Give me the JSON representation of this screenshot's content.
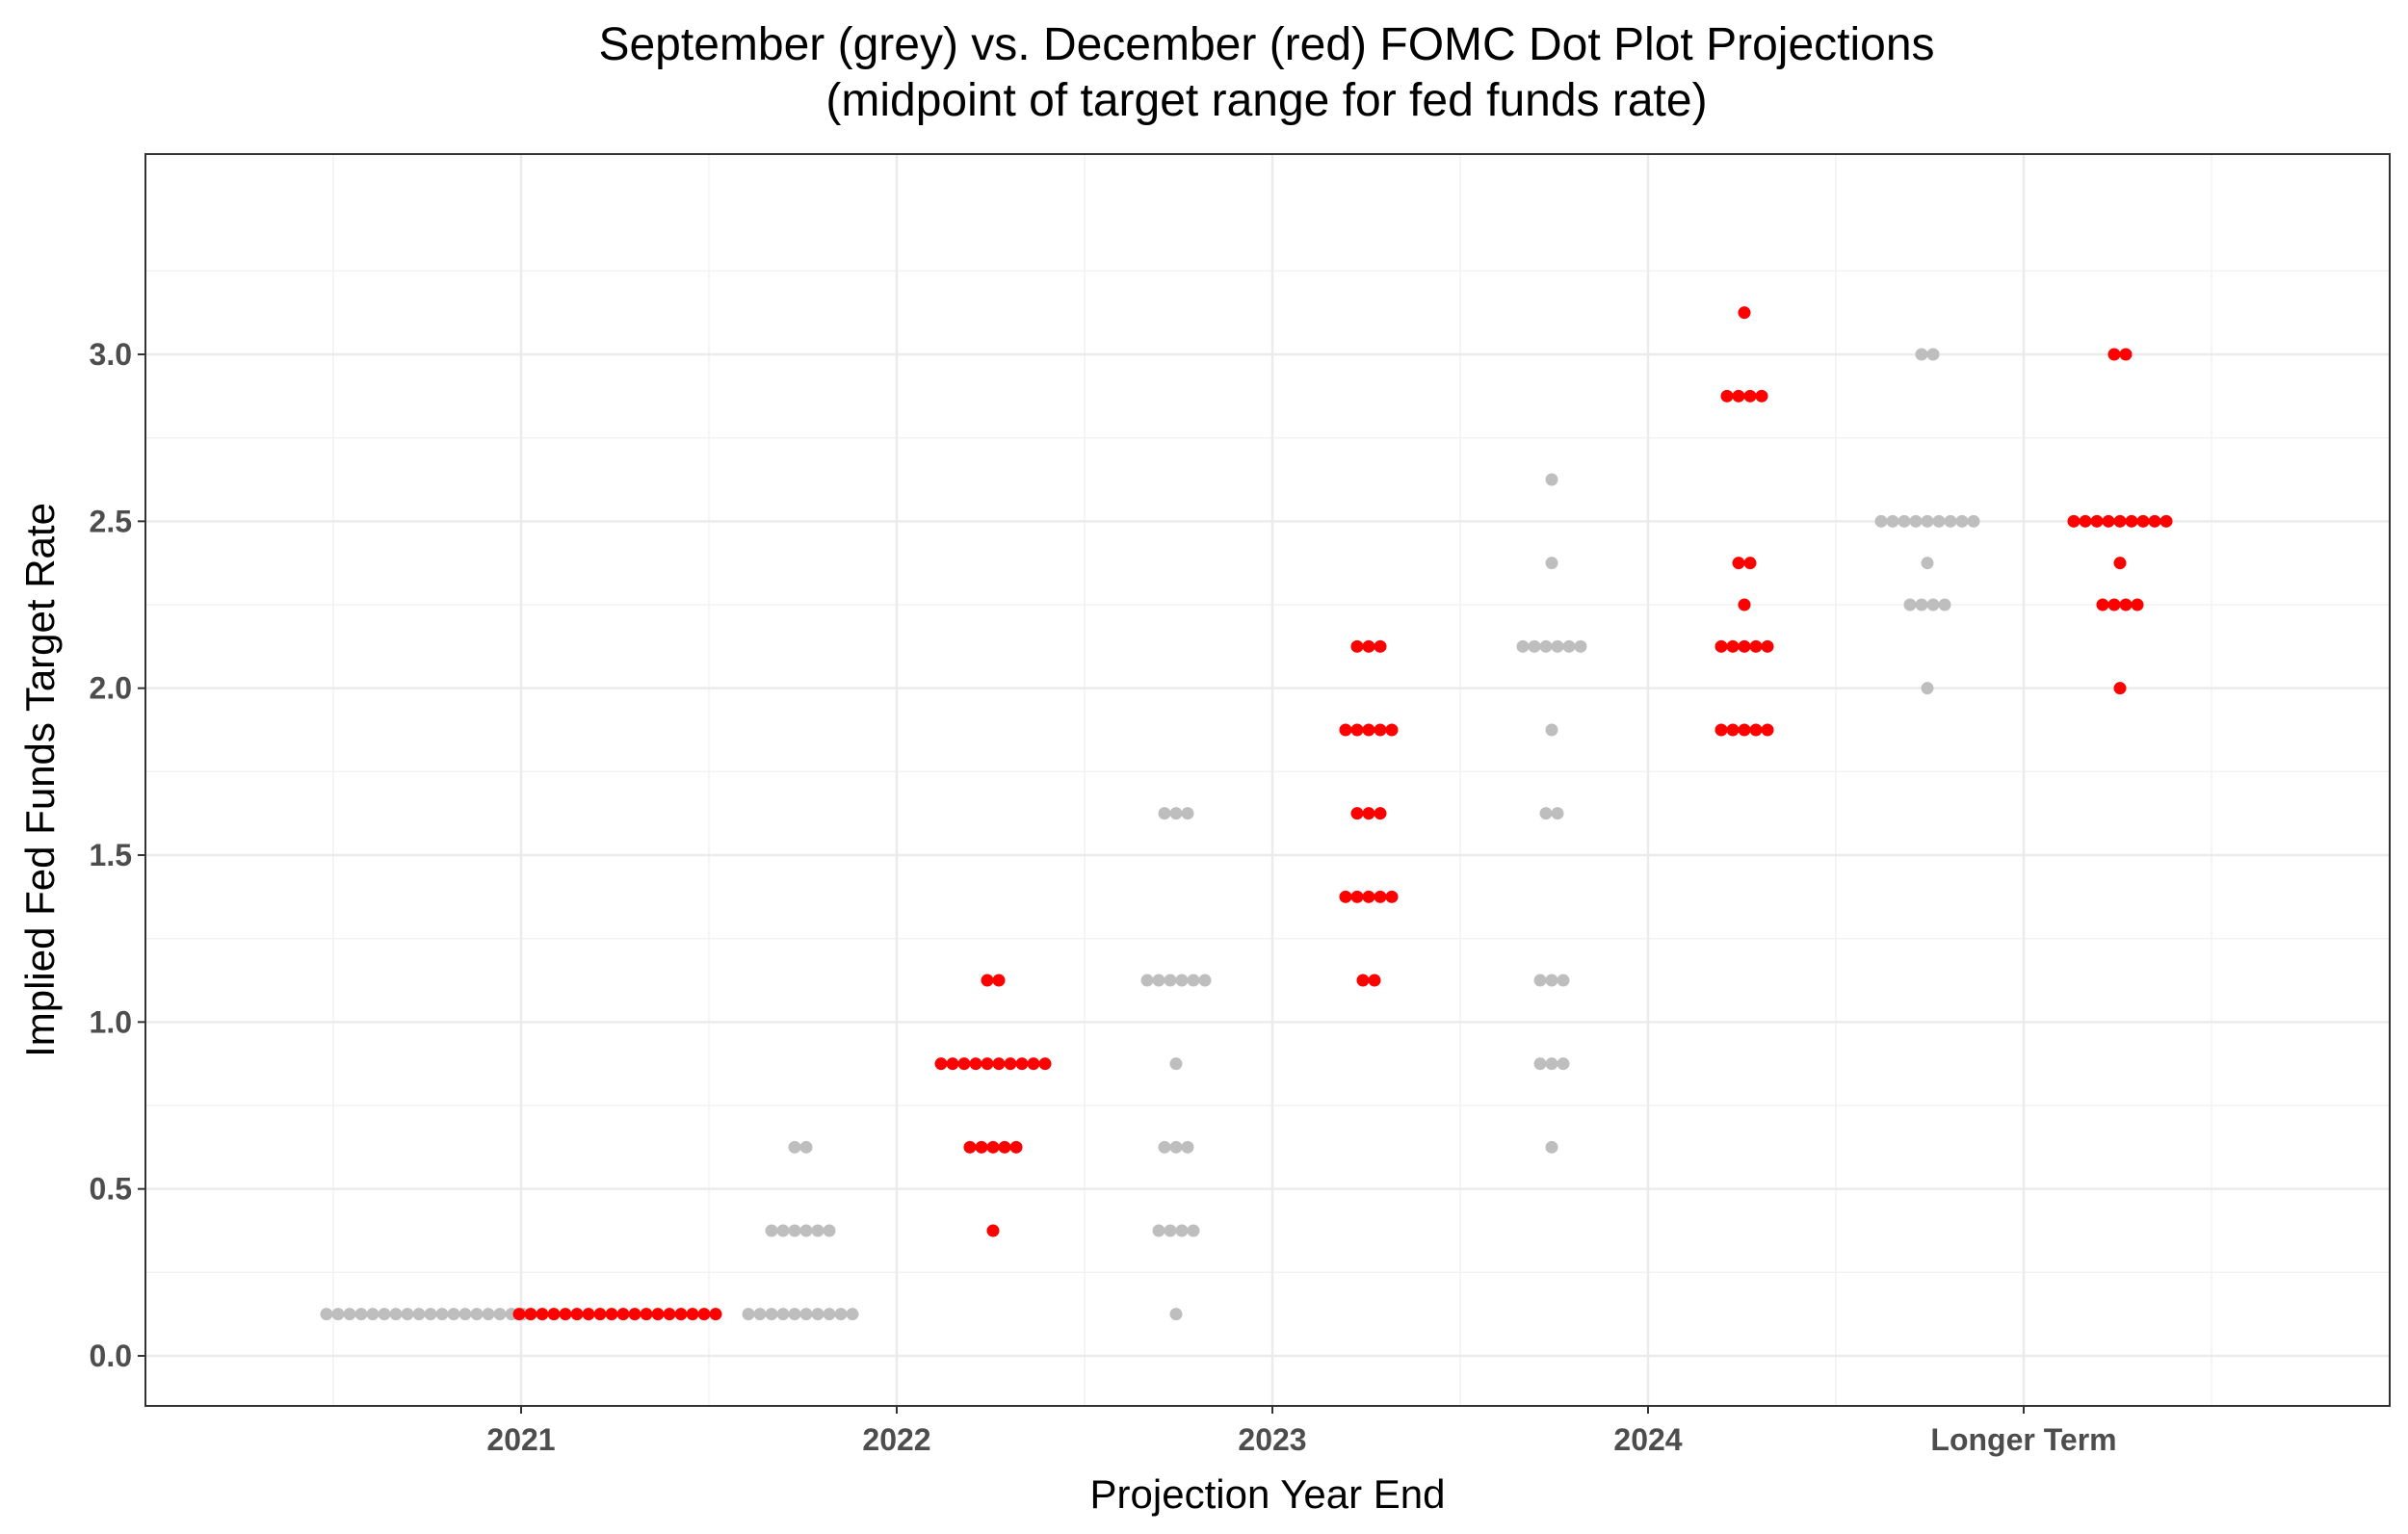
{
  "chart_data": {
    "type": "scatter",
    "title": "September (grey) vs. December (red) FOMC Dot Plot Projections",
    "subtitle": "(midpoint of target range for fed funds rate)",
    "xlabel": "Projection Year End",
    "ylabel": "Implied Fed Funds Target Rate",
    "categories": [
      "2021",
      "2022",
      "2023",
      "2024",
      "Longer Term"
    ],
    "ylim": [
      -0.15,
      3.6
    ],
    "y_ticks": [
      "0.0",
      "0.5",
      "1.0",
      "1.5",
      "2.0",
      "2.5",
      "3.0"
    ],
    "grid": true,
    "series": [
      {
        "color": "#bebebe",
        "points": [
          {
            "x": "2021",
            "y": 0.125,
            "count": 18
          },
          {
            "x": "2022",
            "y": 0.125,
            "count": 10
          },
          {
            "x": "2022",
            "y": 0.375,
            "count": 6
          },
          {
            "x": "2022",
            "y": 0.625,
            "count": 2
          },
          {
            "x": "2023",
            "y": 0.125,
            "count": 1
          },
          {
            "x": "2023",
            "y": 0.375,
            "count": 4
          },
          {
            "x": "2023",
            "y": 0.625,
            "count": 3
          },
          {
            "x": "2023",
            "y": 0.875,
            "count": 1
          },
          {
            "x": "2023",
            "y": 1.125,
            "count": 6
          },
          {
            "x": "2023",
            "y": 1.625,
            "count": 3
          },
          {
            "x": "2024",
            "y": 0.625,
            "count": 1
          },
          {
            "x": "2024",
            "y": 0.875,
            "count": 3
          },
          {
            "x": "2024",
            "y": 1.125,
            "count": 3
          },
          {
            "x": "2024",
            "y": 1.625,
            "count": 2
          },
          {
            "x": "2024",
            "y": 1.875,
            "count": 1
          },
          {
            "x": "2024",
            "y": 2.125,
            "count": 6
          },
          {
            "x": "2024",
            "y": 2.375,
            "count": 1
          },
          {
            "x": "2024",
            "y": 2.625,
            "count": 1
          },
          {
            "x": "Longer Term",
            "y": 2.0,
            "count": 1
          },
          {
            "x": "Longer Term",
            "y": 2.25,
            "count": 4
          },
          {
            "x": "Longer Term",
            "y": 2.375,
            "count": 1
          },
          {
            "x": "Longer Term",
            "y": 2.5,
            "count": 9
          },
          {
            "x": "Longer Term",
            "y": 3.0,
            "count": 2
          }
        ]
      },
      {
        "color": "#ff0000",
        "points": [
          {
            "x": "2021",
            "y": 0.125,
            "count": 18
          },
          {
            "x": "2022",
            "y": 0.375,
            "count": 1
          },
          {
            "x": "2022",
            "y": 0.625,
            "count": 5
          },
          {
            "x": "2022",
            "y": 0.875,
            "count": 10
          },
          {
            "x": "2022",
            "y": 1.125,
            "count": 2
          },
          {
            "x": "2023",
            "y": 1.125,
            "count": 2
          },
          {
            "x": "2023",
            "y": 1.375,
            "count": 5
          },
          {
            "x": "2023",
            "y": 1.625,
            "count": 3
          },
          {
            "x": "2023",
            "y": 1.875,
            "count": 5
          },
          {
            "x": "2023",
            "y": 2.125,
            "count": 3
          },
          {
            "x": "2024",
            "y": 1.875,
            "count": 5
          },
          {
            "x": "2024",
            "y": 2.125,
            "count": 5
          },
          {
            "x": "2024",
            "y": 2.25,
            "count": 1
          },
          {
            "x": "2024",
            "y": 2.375,
            "count": 2
          },
          {
            "x": "2024",
            "y": 2.875,
            "count": 4
          },
          {
            "x": "2024",
            "y": 3.125,
            "count": 1
          },
          {
            "x": "Longer Term",
            "y": 2.0,
            "count": 1
          },
          {
            "x": "Longer Term",
            "y": 2.25,
            "count": 4
          },
          {
            "x": "Longer Term",
            "y": 2.375,
            "count": 1
          },
          {
            "x": "Longer Term",
            "y": 2.5,
            "count": 9
          },
          {
            "x": "Longer Term",
            "y": 3.0,
            "count": 2
          }
        ]
      }
    ]
  }
}
